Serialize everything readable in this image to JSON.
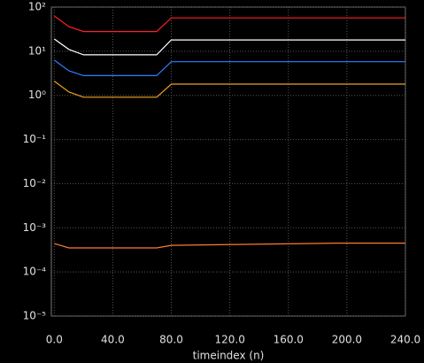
{
  "chart_data": {
    "type": "line",
    "x_label": "timeindex (n)",
    "xlim": [
      -2,
      240
    ],
    "xticks": [
      {
        "value": 0,
        "label": "0.0"
      },
      {
        "value": 40,
        "label": "40.0"
      },
      {
        "value": 80,
        "label": "80.0"
      },
      {
        "value": 120,
        "label": "120.0"
      },
      {
        "value": 160,
        "label": "160.0"
      },
      {
        "value": 200,
        "label": "200.0"
      },
      {
        "value": 240,
        "label": "240.0"
      }
    ],
    "ylim": [
      1e-05,
      100
    ],
    "yticks": [
      {
        "value": 100,
        "label": "10²"
      },
      {
        "value": 10,
        "label": "10¹"
      },
      {
        "value": 1,
        "label": "10⁰"
      },
      {
        "value": 0.1,
        "label": "10⁻¹"
      },
      {
        "value": 0.01,
        "label": "10⁻²"
      },
      {
        "value": 0.001,
        "label": "10⁻³"
      },
      {
        "value": 0.0001,
        "label": "10⁻⁴"
      },
      {
        "value": 1e-05,
        "label": "10⁻⁵"
      }
    ],
    "log_y": true,
    "grid": true,
    "series": [
      {
        "color": "#ff2020",
        "x": [
          0,
          10,
          20,
          70,
          80,
          240
        ],
        "values": [
          63,
          36,
          28,
          28,
          57,
          57
        ]
      },
      {
        "color": "#ffffff",
        "x": [
          0,
          10,
          20,
          70,
          80,
          240
        ],
        "values": [
          19,
          11,
          8.3,
          8.3,
          18,
          18
        ]
      },
      {
        "color": "#2f7fff",
        "x": [
          0,
          10,
          20,
          70,
          80,
          240
        ],
        "values": [
          6.3,
          3.6,
          2.8,
          2.8,
          5.8,
          5.8
        ]
      },
      {
        "color": "#f0a020",
        "x": [
          0,
          10,
          20,
          70,
          80,
          240
        ],
        "values": [
          2.1,
          1.2,
          0.91,
          0.91,
          1.8,
          1.8
        ]
      },
      {
        "color": "#ff7a30",
        "x": [
          0,
          10,
          70,
          80,
          125,
          195,
          240
        ],
        "values": [
          0.00044,
          0.00035,
          0.00035,
          0.0004,
          0.00042,
          0.00045,
          0.00045
        ]
      }
    ]
  }
}
